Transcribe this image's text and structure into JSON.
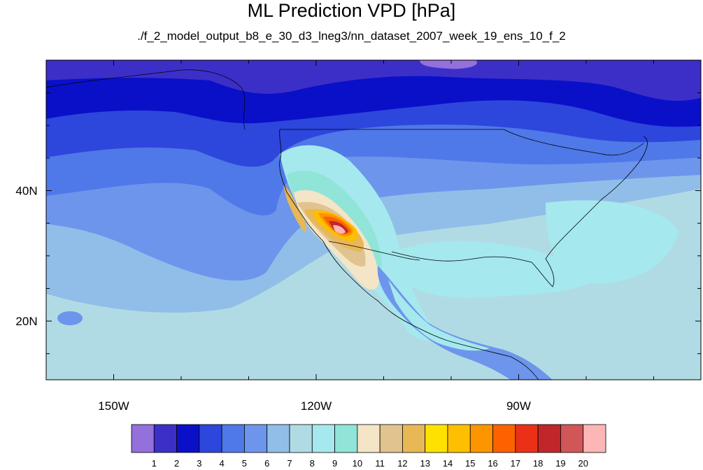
{
  "title": "ML Prediction VPD [hPa]",
  "subtitle": "./f_2_model_output_b8_e_30_d3_lneg3/nn_dataset_2007_week_19_ens_10_f_2",
  "map": {
    "lon_range": [
      -160,
      -63
    ],
    "lat_range": [
      11,
      60
    ],
    "lon_ticks": [
      {
        "value": -150,
        "label": "150W"
      },
      {
        "value": -120,
        "label": "120W"
      },
      {
        "value": -90,
        "label": "90W"
      }
    ],
    "lat_ticks": [
      {
        "value": 40,
        "label": "40N"
      },
      {
        "value": 20,
        "label": "20N"
      }
    ]
  },
  "colorbar": {
    "colors": [
      "#9370db",
      "#3c2fc8",
      "#0a10c8",
      "#2d46dc",
      "#4f78e8",
      "#6e95ec",
      "#90bee8",
      "#b0dbe4",
      "#a5e8ee",
      "#90e4d8",
      "#f3e5c5",
      "#e1c38f",
      "#e8b756",
      "#fee100",
      "#fdbf00",
      "#fd9500",
      "#fc6200",
      "#ea3118",
      "#c0262a",
      "#d05658",
      "#fcb6b6"
    ],
    "labels": [
      "1",
      "2",
      "3",
      "4",
      "5",
      "6",
      "7",
      "8",
      "9",
      "10",
      "11",
      "12",
      "13",
      "14",
      "15",
      "16",
      "17",
      "18",
      "19",
      "20"
    ]
  }
}
